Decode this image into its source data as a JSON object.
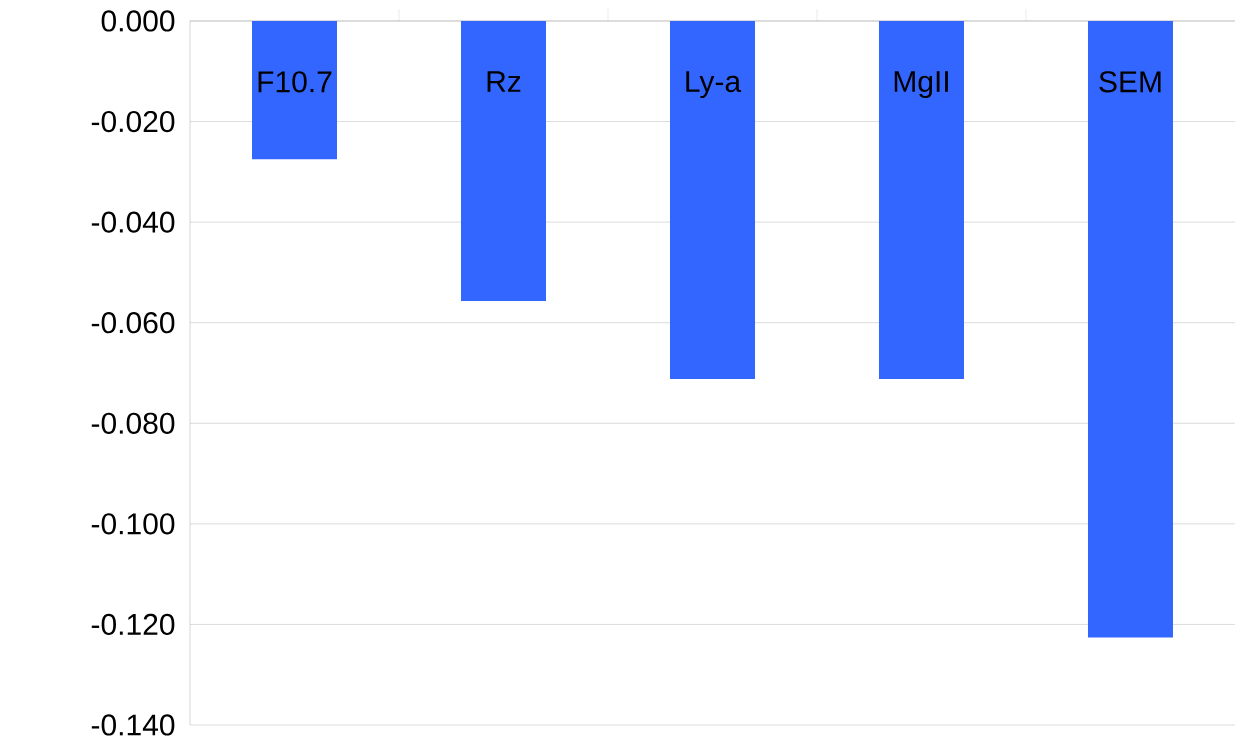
{
  "chart_data": {
    "type": "bar",
    "categories": [
      "F10.7",
      "Rz",
      "Ly-a",
      "MgII",
      "SEM"
    ],
    "values": [
      -0.0275,
      -0.0557,
      -0.0712,
      -0.0712,
      -0.1226
    ],
    "color": "#3366ff",
    "ylim": [
      -0.14,
      0
    ],
    "yticks": [
      {
        "value": -0.14,
        "label": "-0.140"
      },
      {
        "value": -0.12,
        "label": "-0.120"
      },
      {
        "value": -0.1,
        "label": "-0.100"
      },
      {
        "value": -0.08,
        "label": "-0.080"
      },
      {
        "value": -0.06,
        "label": "-0.060"
      },
      {
        "value": -0.04,
        "label": "-0.040"
      },
      {
        "value": -0.02,
        "label": "-0.020"
      },
      {
        "value": 0,
        "label": "0.000"
      }
    ],
    "grid": "y"
  }
}
